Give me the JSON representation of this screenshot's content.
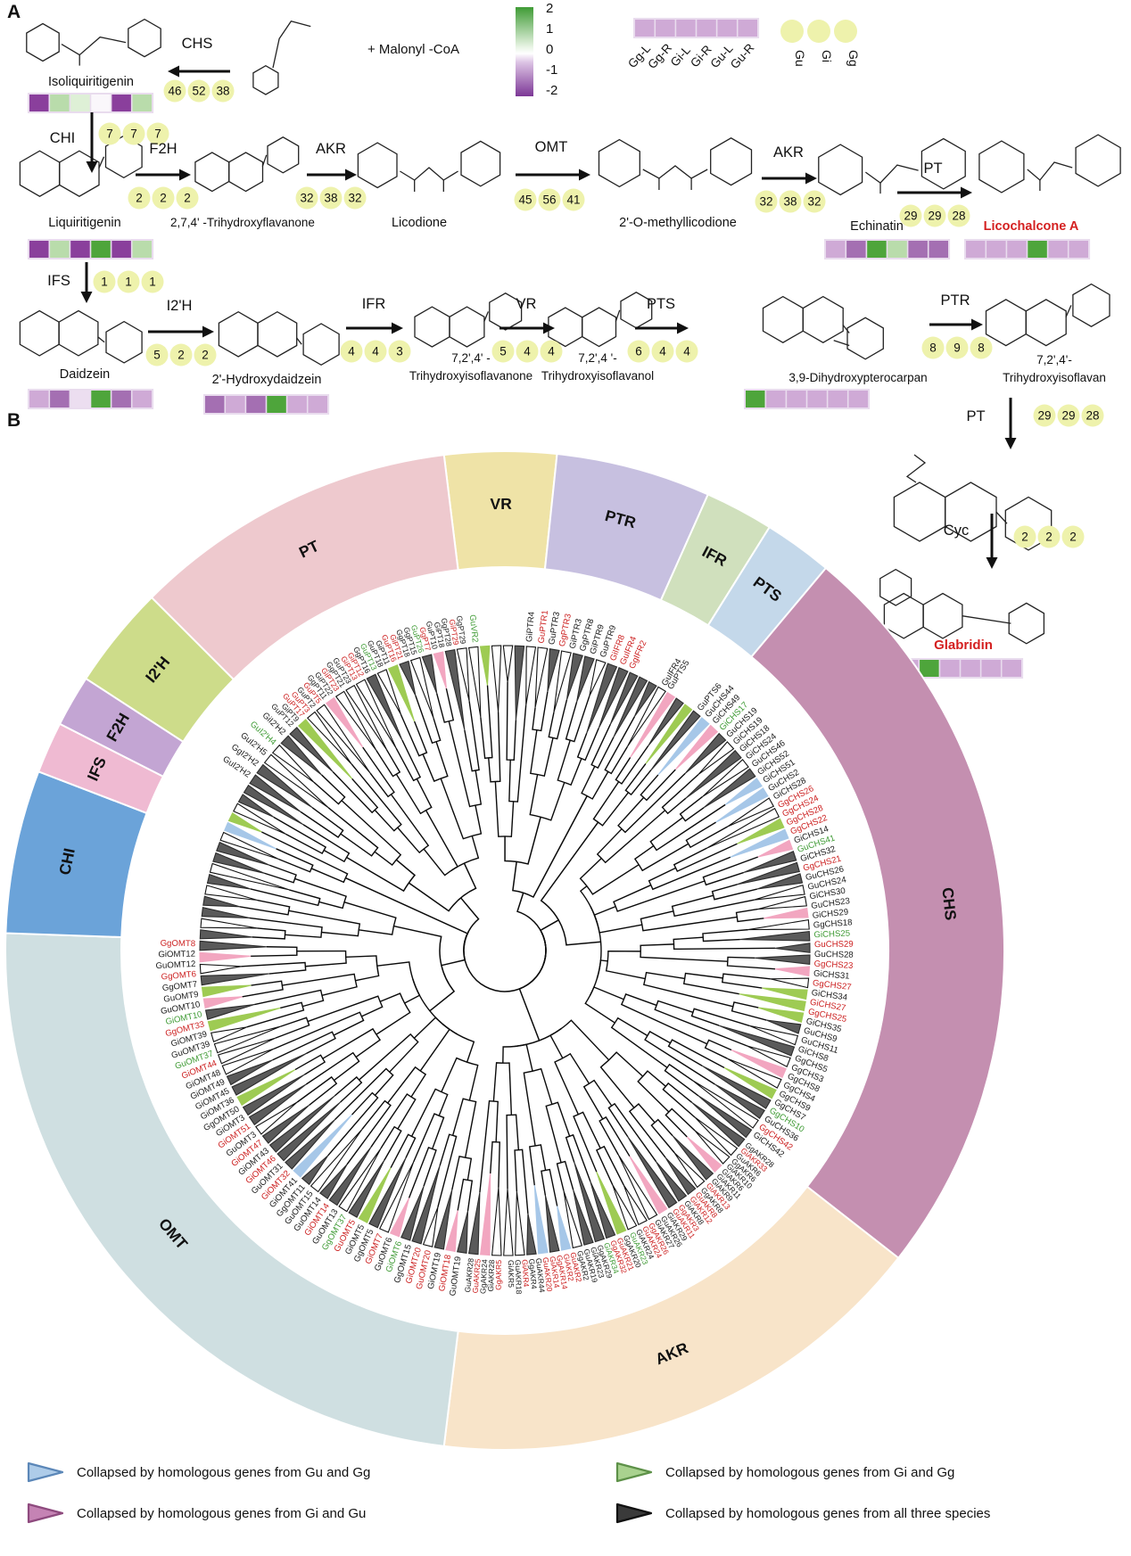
{
  "panels": {
    "a": "A",
    "b": "B"
  },
  "heatmap_legend": {
    "scale_ticks": [
      "2",
      "1",
      "0",
      "-1",
      "-2"
    ],
    "columns": [
      "Gg-L",
      "Gg-R",
      "Gi-L",
      "Gi-R",
      "Gu-L",
      "Gu-R"
    ],
    "sample_strip": [
      "lp",
      "lp",
      "lp",
      "lp",
      "lp",
      "lp"
    ],
    "species": [
      "Gu",
      "Gi",
      "Gg"
    ]
  },
  "colors": {
    "heatmap": {
      "dp": "#8a3f9c",
      "mp": "#a46fb2",
      "lp": "#cfaad6",
      "vlp": "#ecdef0",
      "w": "#faf7fb",
      "g": "#4ea53b",
      "lg": "#b9dcab",
      "vlg": "#def0d6"
    },
    "badge_fill": "#eef2ac",
    "scale_top": "#3f9b35",
    "scale_mid": "#ffffff",
    "scale_bottom": "#7c3796",
    "gene_black": "#1a1a1a",
    "gene_red": "#cc2020",
    "gene_green": "#3f9b35",
    "branch": "#0a0a0a",
    "triangle": {
      "gray": "#5a5a5a",
      "white": "#ffffff",
      "green": "#9ecb53",
      "pink": "#f2a6c0",
      "blue": "#a6c7e8"
    }
  },
  "pathway": {
    "malonyl_text": "+  Malonyl -CoA",
    "compounds": [
      {
        "id": "isoliquiritigenin",
        "name": "Isoliquiritigenin",
        "heatmap": [
          "dp",
          "lg",
          "vlg",
          "w",
          "dp",
          "lg"
        ]
      },
      {
        "id": "coumaroyl",
        "name": ""
      },
      {
        "id": "liquiritigenin",
        "name": "Liquiritigenin",
        "heatmap": [
          "dp",
          "lg",
          "dp",
          "g",
          "dp",
          "lg"
        ]
      },
      {
        "id": "thflavanone",
        "name": "2,7,4' -Trihydroxyflavanone"
      },
      {
        "id": "licodione",
        "name": "Licodione"
      },
      {
        "id": "methyllicodione",
        "name": "2'-O-methyllicodione"
      },
      {
        "id": "echinatin",
        "name": "Echinatin",
        "heatmap": [
          "lp",
          "mp",
          "g",
          "lg",
          "mp",
          "mp"
        ]
      },
      {
        "id": "licochalconeA",
        "name": "Licochalcone A",
        "red": true,
        "heatmap": [
          "lp",
          "lp",
          "lp",
          "g",
          "lp",
          "lp"
        ]
      },
      {
        "id": "daidzein",
        "name": "Daidzein",
        "heatmap": [
          "lp",
          "mp",
          "vlp",
          "g",
          "mp",
          "lp"
        ]
      },
      {
        "id": "hydroxydaidzein",
        "name": "2'-Hydroxydaidzein",
        "heatmap": [
          "mp",
          "lp",
          "mp",
          "g",
          "lp",
          "lp"
        ]
      },
      {
        "id": "thisoflavanone",
        "name": "7,2',4' -",
        "name2": "Trihydroxyisoflavanone"
      },
      {
        "id": "thisoflavanol",
        "name": "7,2',4 '-",
        "name2": "Trihydroxyisoflavanol"
      },
      {
        "id": "pterocarpan",
        "name": "3,9-Dihydroxypterocarpan",
        "heatmap": [
          "g",
          "lp",
          "lp",
          "lp",
          "lp",
          "lp"
        ]
      },
      {
        "id": "thisoflavan",
        "name": "7,2',4'-",
        "name2": "Trihydroxyisoflavan"
      },
      {
        "id": "prenylintermediate",
        "name": ""
      },
      {
        "id": "glabridin",
        "name": "Glabridin",
        "red": true,
        "heatmap": [
          "lp",
          "g",
          "lp",
          "lp",
          "lp",
          "lp"
        ]
      }
    ],
    "reactions": [
      {
        "id": "chs",
        "enzyme": "CHS",
        "counts": [
          "46",
          "52",
          "38"
        ]
      },
      {
        "id": "chi",
        "enzyme": "CHI",
        "counts": [
          "7",
          "7",
          "7"
        ]
      },
      {
        "id": "f2h",
        "enzyme": "F2H",
        "counts": [
          "2",
          "2",
          "2"
        ]
      },
      {
        "id": "akr1",
        "enzyme": "AKR",
        "counts": [
          "32",
          "38",
          "32"
        ]
      },
      {
        "id": "omt",
        "enzyme": "OMT",
        "counts": [
          "45",
          "56",
          "41"
        ]
      },
      {
        "id": "akr2",
        "enzyme": "AKR",
        "counts": [
          "32",
          "38",
          "32"
        ]
      },
      {
        "id": "pt1",
        "enzyme": "PT",
        "counts": [
          "29",
          "29",
          "28"
        ]
      },
      {
        "id": "ifs",
        "enzyme": "IFS",
        "counts": [
          "1",
          "1",
          "1"
        ]
      },
      {
        "id": "i2h",
        "enzyme": "I2'H",
        "counts": [
          "5",
          "2",
          "2"
        ]
      },
      {
        "id": "ifr",
        "enzyme": "IFR",
        "counts": [
          "4",
          "4",
          "3"
        ]
      },
      {
        "id": "vr",
        "enzyme": "VR",
        "counts": [
          "5",
          "4",
          "4"
        ]
      },
      {
        "id": "pts",
        "enzyme": "PTS",
        "counts": [
          "6",
          "4",
          "4"
        ]
      },
      {
        "id": "ptr",
        "enzyme": "PTR",
        "counts": [
          "8",
          "9",
          "8"
        ]
      },
      {
        "id": "pt2",
        "enzyme": "PT",
        "counts": [
          "29",
          "29",
          "28"
        ]
      },
      {
        "id": "cyc",
        "enzyme": "Cyc",
        "counts": [
          "2",
          "2",
          "2"
        ]
      }
    ]
  },
  "tree": {
    "sectors": [
      {
        "name": "VR",
        "color": "#efe3a7",
        "a0": -7,
        "a1": 6,
        "genes": [
          "GuVR2:g",
          "GiPTR4"
        ]
      },
      {
        "name": "PTR",
        "color": "#c7c0e0",
        "a0": 6,
        "a1": 24,
        "genes": [
          "GuPTR1:r",
          "GuPTR3",
          "GgPTR3:r",
          "GiPTR3",
          "GgPTR8",
          "GiPTR9",
          "GuPTR9",
          "GiIFR8:r",
          "GuIFR4:r"
        ]
      },
      {
        "name": "IFR",
        "color": "#d0e0bd",
        "a0": 24,
        "a1": 32,
        "genes": [
          "GgIFR2:r",
          "GuIFR4"
        ]
      },
      {
        "name": "PTS",
        "color": "#c4d8ea",
        "a0": 32,
        "a1": 40,
        "genes": [
          "GuPTS5",
          "GuPTS6"
        ]
      },
      {
        "name": "CHS",
        "color": "#c48fb0",
        "a0": 40,
        "a1": 128,
        "genes": [
          "GuCHS44",
          "GiCHS49",
          "GiCHS17:g",
          "GuCHS19",
          "GiCHS19",
          "GiCHS18",
          "GiCHS24",
          "GuCHS46",
          "GiCHS52",
          "GiCHS51",
          "GuCHS2",
          "GiCHS28",
          "GgCHS26:r",
          "GgCHS24:r",
          "GgCHS28:r",
          "GgCHS22:r",
          "GiCHS14",
          "GuCHS41:g",
          "GiCHS32",
          "GgCHS21:r",
          "GuCHS26",
          "GuCHS24",
          "GiCHS30",
          "GuCHS23",
          "GiCHS29",
          "GgCHS18",
          "GiCHS25:g",
          "GuCHS29:r",
          "GuCHS28",
          "GgCHS23:r",
          "GiCHS31",
          "GgCHS27:r",
          "GiCHS34",
          "GiCHS27:r",
          "GgCHS25:r",
          "GiCHS35",
          "GuCHS9",
          "GuCHS11",
          "GiCHS8",
          "GgCHS5",
          "GgCHS3",
          "GgCHS8",
          "GgCHS4",
          "GgCHS9",
          "GgCHS7",
          "GgCHS10:g",
          "GuCHS36",
          "GgCHS42:r",
          "GiCHS42"
        ]
      },
      {
        "name": "AKR",
        "color": "#f8e4c9",
        "a0": 128,
        "a1": 187,
        "genes": [
          "GgAKR28",
          "GiAKR33:r",
          "GuAKR6",
          "GgAKR6",
          "GiAKR10",
          "GiAKR6",
          "GiAKR11",
          "GiAKR9",
          "GiAKR13:r",
          "GgAKR8",
          "GuAKR8:r",
          "GiAKR12:r",
          "GiAKR8",
          "GgAKR3:r",
          "GuAKR11:r",
          "GiAKR29",
          "GuAKR26",
          "GiAKR27",
          "GgAKR26:r",
          "GuAKR24:r",
          "GiAKR24",
          "GuAKR23:g",
          "GgAKR20",
          "GuAKR21:r",
          "GgAKR32:r",
          "GiAKR34:g",
          "GgAKR29",
          "GiAKR23",
          "GuAKR19",
          "GgAKR2",
          "GuAKR2:r",
          "GiAKR2:r",
          "GgAKR14:r",
          "GiAKR14:r",
          "GuAKR20:r",
          "GuAKR44",
          "GgAKR4",
          "GiAKR4:r",
          "GuAKR18",
          "GiAKR5",
          "GgAKR5:r",
          "GiAKR28",
          "GgAKR24",
          "GuAKR25:r",
          "GuAKR28"
        ]
      },
      {
        "name": "OMT",
        "color": "#cfdfe1",
        "a0": 187,
        "a1": 272,
        "genes": [
          "GuOMT19",
          "GiOMT18:r",
          "GiOMT19",
          "GuOMT20:r",
          "GiOMT20:r",
          "GgOMT15",
          "GiOMT6:g",
          "GuOMT6",
          "GiOMT7:r",
          "GgOMT5",
          "GiOMT5",
          "GuOMT5:r",
          "GgOMT37:g",
          "GuOMT13",
          "GiOMT14:r",
          "GuOMT14",
          "GuOMT15",
          "GgOMT11",
          "GiOMT41",
          "GiOMT32:r",
          "GuOMT31",
          "GiOMT46:r",
          "GiOMT43",
          "GiOMT47:r",
          "GuOMT3",
          "GiOMT51:r",
          "GiOMT3",
          "GgOMT50",
          "GiOMT36",
          "GiOMT45",
          "GiOMT49",
          "GiOMT48",
          "GiOMT44:r",
          "GuOMT37:g",
          "GuOMT39",
          "GiOMT39",
          "GgOMT33:r",
          "GiOMT10:g",
          "GuOMT10",
          "GuOMT9",
          "GgOMT7",
          "GgOMT6:r",
          "GuOMT12",
          "GiOMT12",
          "GgOMT8:r"
        ]
      },
      {
        "name": "CHI",
        "color": "#6ba3d9",
        "a0": 272,
        "a1": 291,
        "genes": []
      },
      {
        "name": "IFS",
        "color": "#efbad2",
        "a0": 291,
        "a1": 297,
        "genes": []
      },
      {
        "name": "F2H",
        "color": "#c3a5d3",
        "a0": 297,
        "a1": 303,
        "genes": []
      },
      {
        "name": "I2'H",
        "color": "#cddc8a",
        "a0": 303,
        "a1": 315,
        "genes": [
          "GuI2'H2",
          "GgI2'H2",
          "GuI2'H5",
          "GuI2'H4:g",
          "GiI2'H2"
        ]
      },
      {
        "name": "PT",
        "color": "#eec9ce",
        "a0": 315,
        "a1": 353,
        "genes": [
          "GuPT12",
          "GiPT9",
          "GuPT17:r",
          "GuPT3:r",
          "GuPT2",
          "GuPT5:r",
          "GgPT11",
          "GiPT22",
          "GiPT23:r",
          "GgPT21",
          "GuPT23",
          "GiPT13:r",
          "GiPT12:r",
          "GgPT16",
          "GuPT13:g",
          "GuPT18",
          "GiPT11",
          "GuPT16:r",
          "GiPT21:r",
          "GgPT18",
          "GgPT15",
          "GuPT26:g",
          "GgPT7:r",
          "GuPT10",
          "GiPT18",
          "GgPT28",
          "GiPT29:r",
          "GgPT29"
        ]
      }
    ]
  },
  "legend": [
    {
      "color": "blue",
      "label": "Collapsed by homologous genes from Gu and Gg"
    },
    {
      "color": "green",
      "label": "Collapsed by homologous genes from Gi and Gg"
    },
    {
      "color": "purple",
      "label": "Collapsed by homologous genes from Gi and Gu"
    },
    {
      "color": "black",
      "label": "Collapsed by homologous genes from all three species"
    }
  ],
  "legend_colors": {
    "blue": {
      "fill": "#aecce9",
      "stroke": "#5b87b8"
    },
    "green": {
      "fill": "#a9d28f",
      "stroke": "#5d9148"
    },
    "purple": {
      "fill": "#c583b4",
      "stroke": "#8e4a7e"
    },
    "black": {
      "fill": "#3a3a3a",
      "stroke": "#111111"
    }
  }
}
